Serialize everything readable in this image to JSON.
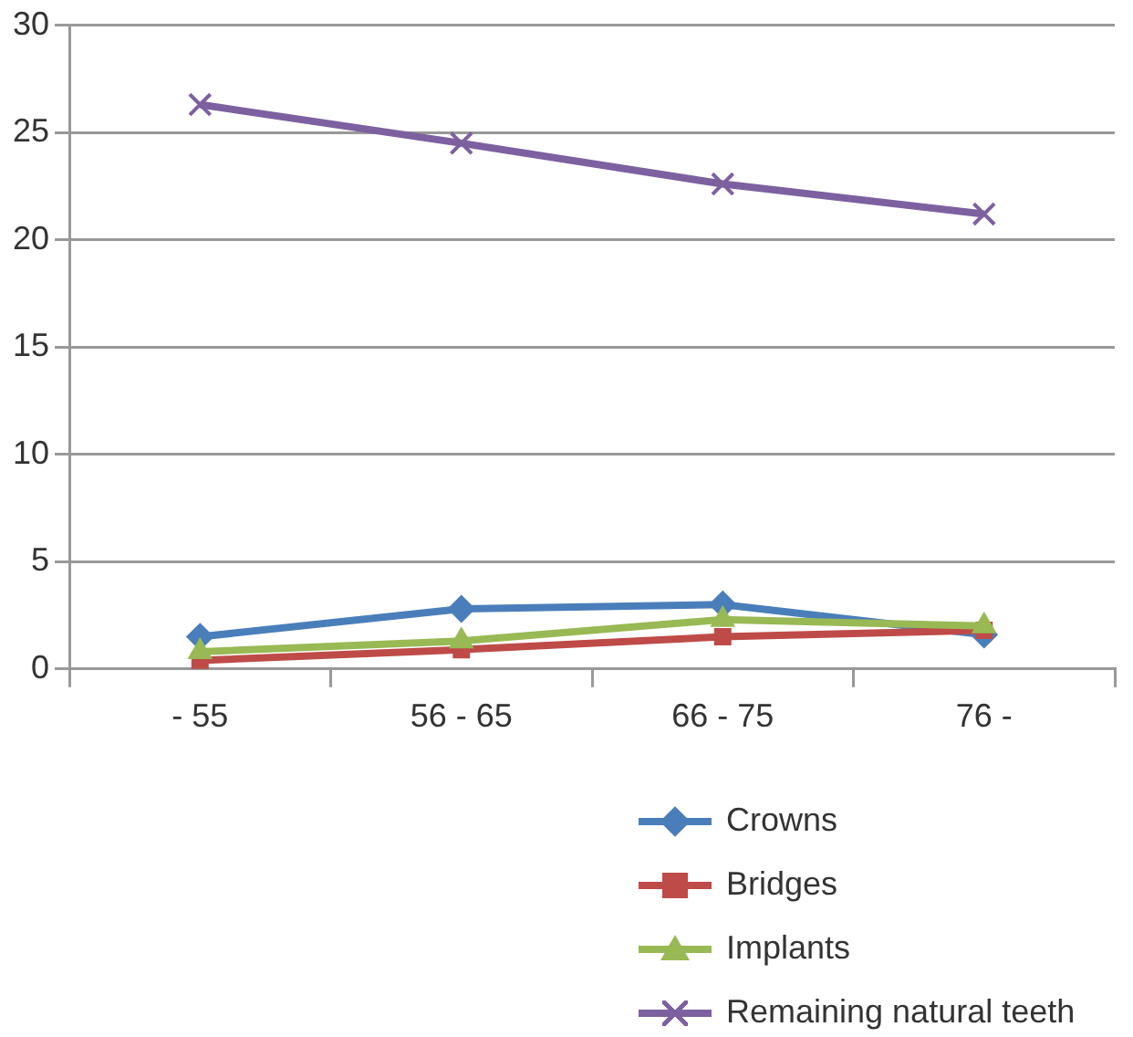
{
  "chart_data": {
    "type": "line",
    "categories": [
      "- 55",
      "56 - 65",
      "66 - 75",
      "76 -"
    ],
    "series": [
      {
        "name": "Crowns",
        "color": "#4a7ebb",
        "marker": "diamond",
        "values": [
          1.5,
          2.8,
          3.0,
          1.6
        ]
      },
      {
        "name": "Bridges",
        "color": "#be4b48",
        "marker": "square",
        "values": [
          0.4,
          0.9,
          1.5,
          1.8
        ]
      },
      {
        "name": "Implants",
        "color": "#98b954",
        "marker": "triangle",
        "values": [
          0.8,
          1.3,
          2.3,
          2.0
        ]
      },
      {
        "name": "Remaining natural teeth",
        "color": "#7d60a0",
        "marker": "cross",
        "values": [
          26.3,
          24.5,
          22.6,
          21.2
        ]
      }
    ],
    "ylim": [
      0,
      30
    ],
    "yticks": [
      0,
      5,
      10,
      15,
      20,
      25,
      30
    ],
    "grid": "y",
    "legend": "bottom right",
    "line_style": "solid"
  }
}
